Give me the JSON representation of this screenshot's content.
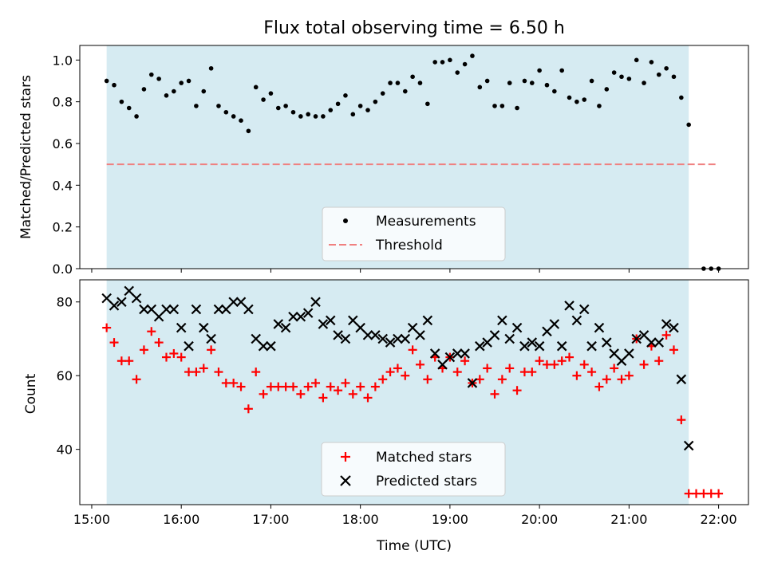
{
  "figure": {
    "title": "Flux total observing time = 6.50 h",
    "xlabel": "Time (UTC)",
    "x_ticks": [
      "15:00",
      "16:00",
      "17:00",
      "18:00",
      "19:00",
      "20:00",
      "21:00",
      "22:00"
    ]
  },
  "colors": {
    "shade": "#add8e6",
    "measurements": "#000000",
    "threshold": "#f08080",
    "matched": "#ff0000",
    "predicted": "#000000"
  },
  "chart_data": [
    {
      "type": "scatter",
      "title": "Flux total observing time = 6.50 h",
      "xlabel": "",
      "ylabel": "Matched/Predicted stars",
      "xlim": [
        "14:52",
        "22:20"
      ],
      "ylim": [
        0.0,
        1.07
      ],
      "y_ticks": [
        "0.0",
        "0.2",
        "0.4",
        "0.6",
        "0.8",
        "1.0"
      ],
      "shaded_x_range": [
        "15:10",
        "21:40"
      ],
      "threshold": 0.5,
      "threshold_x_range": [
        "15:10",
        "22:00"
      ],
      "legend": {
        "placement": "lower center",
        "entries": [
          "Measurements",
          "Threshold"
        ]
      },
      "series": [
        {
          "name": "Measurements",
          "marker": "dot",
          "x": [
            "15:10",
            "15:15",
            "15:20",
            "15:25",
            "15:30",
            "15:35",
            "15:40",
            "15:45",
            "15:50",
            "15:55",
            "16:00",
            "16:05",
            "16:10",
            "16:15",
            "16:20",
            "16:25",
            "16:30",
            "16:35",
            "16:40",
            "16:45",
            "16:50",
            "16:55",
            "17:00",
            "17:05",
            "17:10",
            "17:15",
            "17:20",
            "17:25",
            "17:30",
            "17:35",
            "17:40",
            "17:45",
            "17:50",
            "17:55",
            "18:00",
            "18:05",
            "18:10",
            "18:15",
            "18:20",
            "18:25",
            "18:30",
            "18:35",
            "18:40",
            "18:45",
            "18:50",
            "18:55",
            "19:00",
            "19:05",
            "19:10",
            "19:15",
            "19:20",
            "19:25",
            "19:30",
            "19:35",
            "19:40",
            "19:45",
            "19:50",
            "19:55",
            "20:00",
            "20:05",
            "20:10",
            "20:15",
            "20:20",
            "20:25",
            "20:30",
            "20:35",
            "20:40",
            "20:45",
            "20:50",
            "20:55",
            "21:00",
            "21:05",
            "21:10",
            "21:15",
            "21:20",
            "21:25",
            "21:30",
            "21:35",
            "21:40",
            "21:50",
            "21:55",
            "22:00"
          ],
          "values": [
            0.9,
            0.88,
            0.8,
            0.77,
            0.73,
            0.86,
            0.93,
            0.91,
            0.83,
            0.85,
            0.89,
            0.9,
            0.78,
            0.85,
            0.96,
            0.78,
            0.75,
            0.73,
            0.71,
            0.66,
            0.87,
            0.81,
            0.84,
            0.77,
            0.78,
            0.75,
            0.73,
            0.74,
            0.73,
            0.73,
            0.76,
            0.79,
            0.83,
            0.74,
            0.78,
            0.76,
            0.8,
            0.84,
            0.89,
            0.89,
            0.85,
            0.92,
            0.89,
            0.79,
            0.99,
            0.99,
            1.0,
            0.94,
            0.98,
            1.02,
            0.87,
            0.9,
            0.78,
            0.78,
            0.89,
            0.77,
            0.9,
            0.89,
            0.95,
            0.88,
            0.85,
            0.95,
            0.82,
            0.8,
            0.81,
            0.9,
            0.78,
            0.86,
            0.94,
            0.92,
            0.91,
            1.0,
            0.89,
            0.99,
            0.93,
            0.96,
            0.92,
            0.82,
            0.69,
            0.0,
            0.0,
            0.0
          ]
        }
      ]
    },
    {
      "type": "scatter",
      "xlabel": "Time (UTC)",
      "ylabel": "Count",
      "xlim": [
        "14:52",
        "22:20"
      ],
      "ylim": [
        25,
        86
      ],
      "y_ticks": [
        "40",
        "60",
        "80"
      ],
      "shaded_x_range": [
        "15:10",
        "21:40"
      ],
      "legend": {
        "placement": "lower center",
        "entries": [
          "Matched stars",
          "Predicted stars"
        ]
      },
      "series": [
        {
          "name": "Matched stars",
          "marker": "plus",
          "x": [
            "15:10",
            "15:15",
            "15:20",
            "15:25",
            "15:30",
            "15:35",
            "15:40",
            "15:45",
            "15:50",
            "15:55",
            "16:00",
            "16:05",
            "16:10",
            "16:15",
            "16:20",
            "16:25",
            "16:30",
            "16:35",
            "16:40",
            "16:45",
            "16:50",
            "16:55",
            "17:00",
            "17:05",
            "17:10",
            "17:15",
            "17:20",
            "17:25",
            "17:30",
            "17:35",
            "17:40",
            "17:45",
            "17:50",
            "17:55",
            "18:00",
            "18:05",
            "18:10",
            "18:15",
            "18:20",
            "18:25",
            "18:30",
            "18:35",
            "18:40",
            "18:45",
            "18:50",
            "18:55",
            "19:00",
            "19:05",
            "19:10",
            "19:15",
            "19:20",
            "19:25",
            "19:30",
            "19:35",
            "19:40",
            "19:45",
            "19:50",
            "19:55",
            "20:00",
            "20:05",
            "20:10",
            "20:15",
            "20:20",
            "20:25",
            "20:30",
            "20:35",
            "20:40",
            "20:45",
            "20:50",
            "20:55",
            "21:00",
            "21:05",
            "21:10",
            "21:15",
            "21:20",
            "21:25",
            "21:30",
            "21:35",
            "21:40",
            "21:45",
            "21:50",
            "21:55",
            "22:00"
          ],
          "values": [
            73,
            69,
            64,
            64,
            59,
            67,
            72,
            69,
            65,
            66,
            65,
            61,
            61,
            62,
            67,
            61,
            58,
            58,
            57,
            51,
            61,
            55,
            57,
            57,
            57,
            57,
            55,
            57,
            58,
            54,
            57,
            56,
            58,
            55,
            57,
            54,
            57,
            59,
            61,
            62,
            60,
            67,
            63,
            59,
            65,
            62,
            65,
            61,
            64,
            58,
            59,
            62,
            55,
            59,
            62,
            56,
            61,
            61,
            64,
            63,
            63,
            64,
            65,
            60,
            63,
            61,
            57,
            59,
            62,
            59,
            60,
            70,
            63,
            68,
            64,
            71,
            67,
            48,
            28,
            28,
            28,
            28,
            28
          ]
        },
        {
          "name": "Predicted stars",
          "marker": "x",
          "x": [
            "15:10",
            "15:15",
            "15:20",
            "15:25",
            "15:30",
            "15:35",
            "15:40",
            "15:45",
            "15:50",
            "15:55",
            "16:00",
            "16:05",
            "16:10",
            "16:15",
            "16:20",
            "16:25",
            "16:30",
            "16:35",
            "16:40",
            "16:45",
            "16:50",
            "16:55",
            "17:00",
            "17:05",
            "17:10",
            "17:15",
            "17:20",
            "17:25",
            "17:30",
            "17:35",
            "17:40",
            "17:45",
            "17:50",
            "17:55",
            "18:00",
            "18:05",
            "18:10",
            "18:15",
            "18:20",
            "18:25",
            "18:30",
            "18:35",
            "18:40",
            "18:45",
            "18:50",
            "18:55",
            "19:00",
            "19:05",
            "19:10",
            "19:15",
            "19:20",
            "19:25",
            "19:30",
            "19:35",
            "19:40",
            "19:45",
            "19:50",
            "19:55",
            "20:00",
            "20:05",
            "20:10",
            "20:15",
            "20:20",
            "20:25",
            "20:30",
            "20:35",
            "20:40",
            "20:45",
            "20:50",
            "20:55",
            "21:00",
            "21:05",
            "21:10",
            "21:15",
            "21:20",
            "21:25",
            "21:30",
            "21:35",
            "21:40"
          ],
          "values": [
            81,
            79,
            80,
            83,
            81,
            78,
            78,
            76,
            78,
            78,
            73,
            68,
            78,
            73,
            70,
            78,
            78,
            80,
            80,
            78,
            70,
            68,
            68,
            74,
            73,
            76,
            76,
            77,
            80,
            74,
            75,
            71,
            70,
            75,
            73,
            71,
            71,
            70,
            69,
            70,
            70,
            73,
            71,
            75,
            66,
            63,
            65,
            66,
            66,
            58,
            68,
            69,
            71,
            75,
            70,
            73,
            68,
            69,
            68,
            72,
            74,
            68,
            79,
            75,
            78,
            68,
            73,
            69,
            66,
            64,
            66,
            70,
            71,
            69,
            69,
            74,
            73,
            59,
            41
          ]
        }
      ]
    }
  ]
}
